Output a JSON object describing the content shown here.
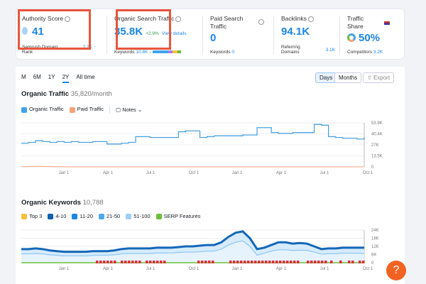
{
  "metrics": {
    "authority": {
      "label": "Authority Score",
      "value": "41",
      "sub_label": "Semrush Domain Rank",
      "sub_value": "2.2K ↑"
    },
    "organic": {
      "label": "Organic Search Traffic",
      "value": "35.8K",
      "change": "+2.9%",
      "link": "View details",
      "sub_label": "Keywords",
      "sub_value": "10.8K ↓"
    },
    "paid": {
      "label": "Paid Search Traffic",
      "value": "0",
      "sub_label": "Keywords",
      "sub_value": "0"
    },
    "backlinks": {
      "label": "Backlinks",
      "value": "94.1K",
      "sub_label": "Referring Domains",
      "sub_value": "3.1K"
    },
    "share": {
      "label": "Traffic Share",
      "value": "50%",
      "sub_label": "Competitors",
      "sub_value": "3.2K"
    }
  },
  "range_tabs": [
    "M",
    "6M",
    "1Y",
    "2Y",
    "All time"
  ],
  "active_range": "2Y",
  "view_buttons": {
    "days": "Days",
    "months": "Months",
    "export": "Export"
  },
  "traffic": {
    "title": "Organic Traffic",
    "subtitle": "35,820/month",
    "legend": [
      "Organic Traffic",
      "Paid Traffic"
    ],
    "notes": "Notes"
  },
  "keywords": {
    "title": "Organic Keywords",
    "subtitle": "10,788",
    "legend": [
      "Top 3",
      "4-10",
      "11-20",
      "21-50",
      "51-100",
      "SERP Features"
    ]
  },
  "colors": {
    "accent": "#1b86e3",
    "highlight": "#e8553c",
    "organic": "#4da3e0",
    "paid": "#f5a27a",
    "serp": "#6bbf3a",
    "serp_marker": "#e0303a",
    "help": "#f26322"
  },
  "help_label": "?",
  "chart_data": [
    {
      "type": "line",
      "x_ticks": [
        "Jan 1",
        "Apr 1",
        "Jul 1",
        "Oct 1",
        "Jan 1",
        "Apr 1",
        "Jul 1",
        "Oct 1"
      ],
      "y_ticks": [
        "53.9K",
        "40.4K",
        "27K",
        "13.5K",
        "0"
      ],
      "ylim": [
        0,
        53900
      ],
      "grid": true,
      "series": [
        {
          "name": "Organic Traffic",
          "values": [
            29,
            30,
            32,
            31,
            30,
            31,
            30,
            31,
            30,
            30,
            31,
            31,
            28,
            28,
            29,
            30,
            37,
            37,
            36,
            36,
            36,
            36,
            43,
            44,
            44,
            36,
            37,
            38,
            38,
            38,
            38,
            39,
            39,
            48,
            48,
            42,
            41,
            41,
            42,
            42,
            42,
            52,
            51,
            37,
            36,
            35,
            35,
            34,
            36
          ]
        },
        {
          "name": "Paid Traffic",
          "values": [
            0.3,
            0.5,
            0.6,
            0.4,
            0.2,
            0.1,
            0,
            0,
            0,
            0,
            0,
            0,
            0,
            0,
            0,
            0,
            0,
            0,
            0,
            0,
            0,
            0,
            0,
            0,
            0,
            0,
            0,
            0,
            0,
            0,
            0,
            0,
            0,
            0,
            0,
            0,
            0,
            0,
            0,
            0,
            0,
            0,
            0,
            0,
            0,
            0,
            0,
            0,
            0
          ]
        }
      ],
      "unit": "K"
    },
    {
      "type": "area",
      "x_ticks": [
        "Jan 1",
        "Apr 1",
        "Jul 1",
        "Oct 1",
        "Jan 1",
        "Apr 1",
        "Jul 1",
        "Oct 1"
      ],
      "y_ticks": [
        "24K",
        "18K",
        "12K",
        "6K",
        "0"
      ],
      "ylim": [
        0,
        24000
      ],
      "grid": true,
      "series": [
        {
          "name": "4-10",
          "values": [
            10,
            10,
            10.5,
            10,
            9,
            8.5,
            8,
            8,
            8,
            8,
            8.5,
            8.5,
            8.5,
            9,
            10,
            10.5,
            10.5,
            10.5,
            10.5,
            11,
            11,
            11,
            11.5,
            12,
            12,
            12.5,
            13,
            13,
            15,
            19,
            22,
            23,
            18,
            10,
            11,
            13,
            15,
            15,
            14,
            14.5,
            14,
            12,
            10,
            10.5,
            10.5,
            11,
            11,
            11,
            11
          ]
        },
        {
          "name": "51-100",
          "values": [
            6.5,
            6.5,
            6.8,
            6.5,
            5.8,
            5.4,
            5,
            5,
            5,
            5,
            5.4,
            5.5,
            5.5,
            5.8,
            6.5,
            6.8,
            6.8,
            6.8,
            6.8,
            7.1,
            7.1,
            7.2,
            7.5,
            7.8,
            7.8,
            8,
            8.5,
            8.5,
            10,
            13,
            15,
            16,
            12,
            5.5,
            7,
            8.5,
            9.5,
            9.5,
            9,
            9.2,
            9,
            7.8,
            6.3,
            6.6,
            6.6,
            7,
            7,
            7,
            6.8
          ]
        }
      ],
      "unit": "K"
    }
  ]
}
